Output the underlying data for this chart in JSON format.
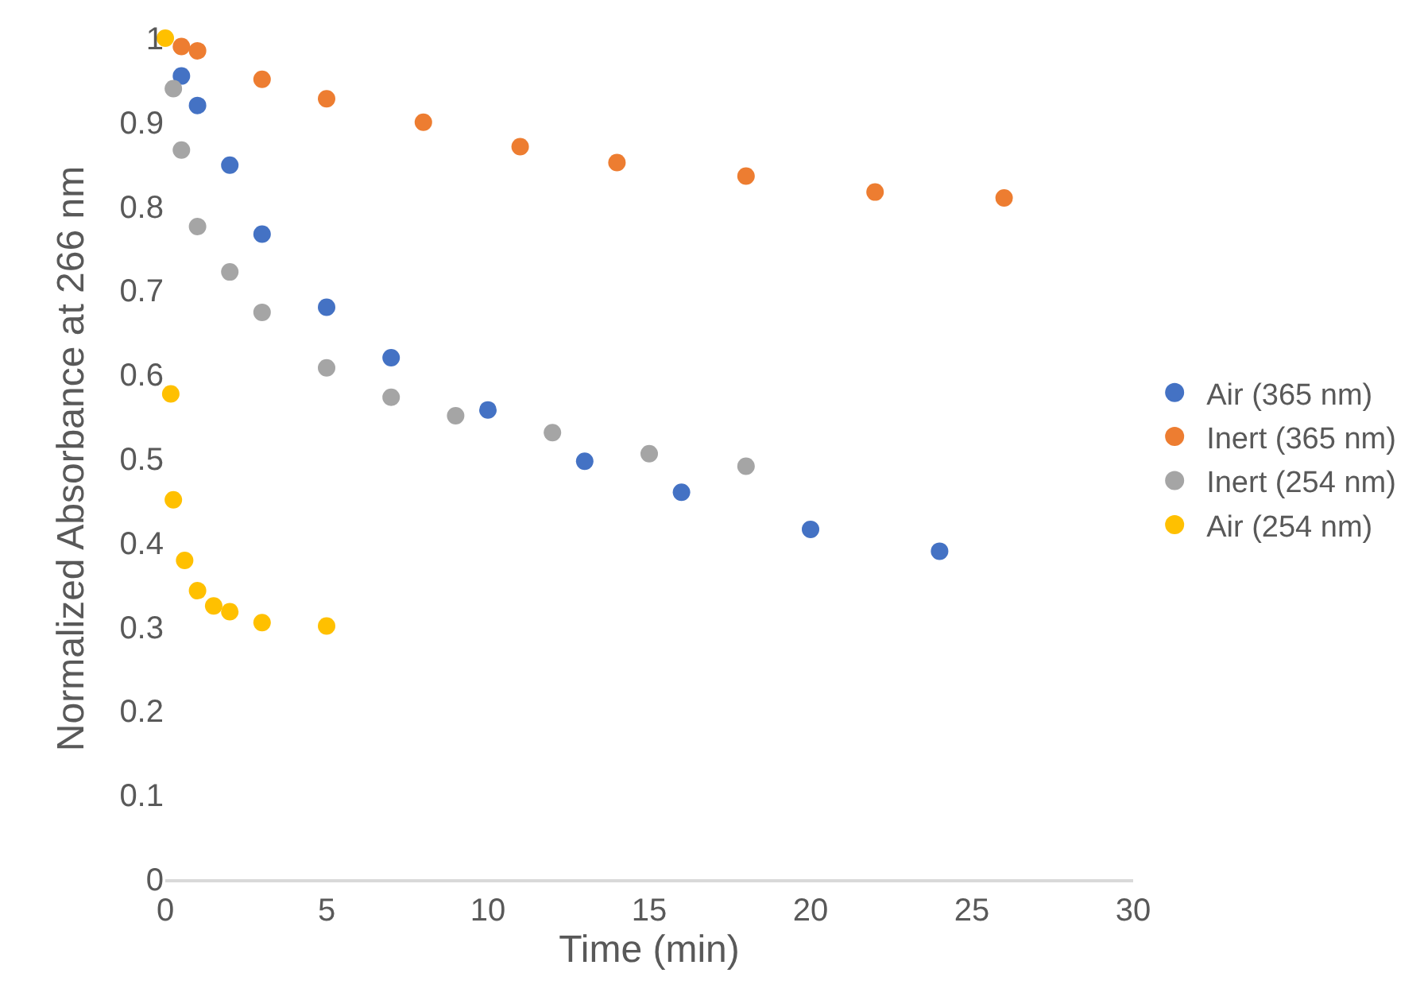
{
  "chart_data": {
    "type": "scatter",
    "xlabel": "Time (min)",
    "ylabel": "Normalized Absorbance at 266 nm",
    "xlim": [
      0,
      30
    ],
    "xticks": [
      0,
      5,
      10,
      15,
      20,
      25,
      30
    ],
    "ylim": [
      0,
      1
    ],
    "yticks": [
      0,
      0.1,
      0.2,
      0.3,
      0.4,
      0.5,
      0.6,
      0.7,
      0.8,
      0.9,
      1
    ],
    "legend": "right",
    "marker": "circle",
    "series": [
      {
        "name": "Air (365 nm)",
        "color": "#4472c4",
        "x": [
          0.5,
          1,
          2,
          3,
          5,
          7,
          10,
          13,
          16,
          20,
          24
        ],
        "values": [
          0.955,
          0.92,
          0.849,
          0.767,
          0.68,
          0.62,
          0.558,
          0.497,
          0.46,
          0.416,
          0.39
        ]
      },
      {
        "name": "Inert (365 nm)",
        "color": "#ed7d31",
        "x": [
          0.5,
          1,
          3,
          5,
          8,
          11,
          14,
          18,
          22,
          26
        ],
        "values": [
          0.99,
          0.985,
          0.951,
          0.928,
          0.9,
          0.871,
          0.852,
          0.836,
          0.817,
          0.81
        ]
      },
      {
        "name": "Inert (254 nm)",
        "color": "#a5a5a5",
        "x": [
          0.25,
          0.5,
          1,
          2,
          3,
          5,
          7,
          9,
          12,
          15,
          18
        ],
        "values": [
          0.94,
          0.867,
          0.776,
          0.722,
          0.674,
          0.608,
          0.573,
          0.551,
          0.531,
          0.506,
          0.491
        ]
      },
      {
        "name": "Air (254 nm)",
        "color": "#ffc000",
        "x": [
          0,
          0.17,
          0.25,
          0.6,
          1,
          1.5,
          2,
          3,
          5
        ],
        "values": [
          1,
          0.577,
          0.451,
          0.379,
          0.343,
          0.325,
          0.318,
          0.305,
          0.301
        ]
      }
    ]
  }
}
